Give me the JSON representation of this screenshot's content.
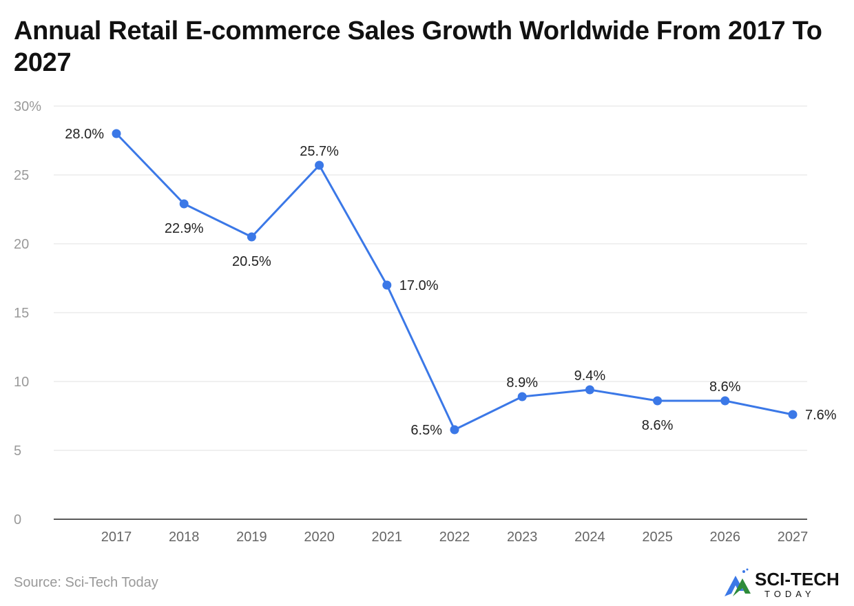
{
  "title": "Annual Retail E-commerce Sales Growth Worldwide From 2017 To 2027",
  "source": "Source: Sci-Tech Today",
  "logo": {
    "text": "SCI-TECH",
    "subtext": "TODAY"
  },
  "chart_data": {
    "type": "line",
    "title": "Annual Retail E-commerce Sales Growth Worldwide From 2017 To 2027",
    "categories": [
      "2017",
      "2018",
      "2019",
      "2020",
      "2021",
      "2022",
      "2023",
      "2024",
      "2025",
      "2026",
      "2027"
    ],
    "series": [
      {
        "values": [
          28.0,
          22.9,
          20.5,
          25.7,
          17.0,
          6.5,
          8.9,
          9.4,
          8.6,
          8.6,
          7.6
        ]
      }
    ],
    "data_labels": [
      "28.0%",
      "22.9%",
      "20.5%",
      "25.7%",
      "17.0%",
      "6.5%",
      "8.9%",
      "9.4%",
      "8.6%",
      "8.6%",
      "7.6%"
    ],
    "y_ticks": [
      "0",
      "5",
      "10",
      "15",
      "20",
      "25",
      "30%"
    ],
    "ylim": [
      0,
      30
    ],
    "grid": true,
    "color": "#3b78e7"
  }
}
